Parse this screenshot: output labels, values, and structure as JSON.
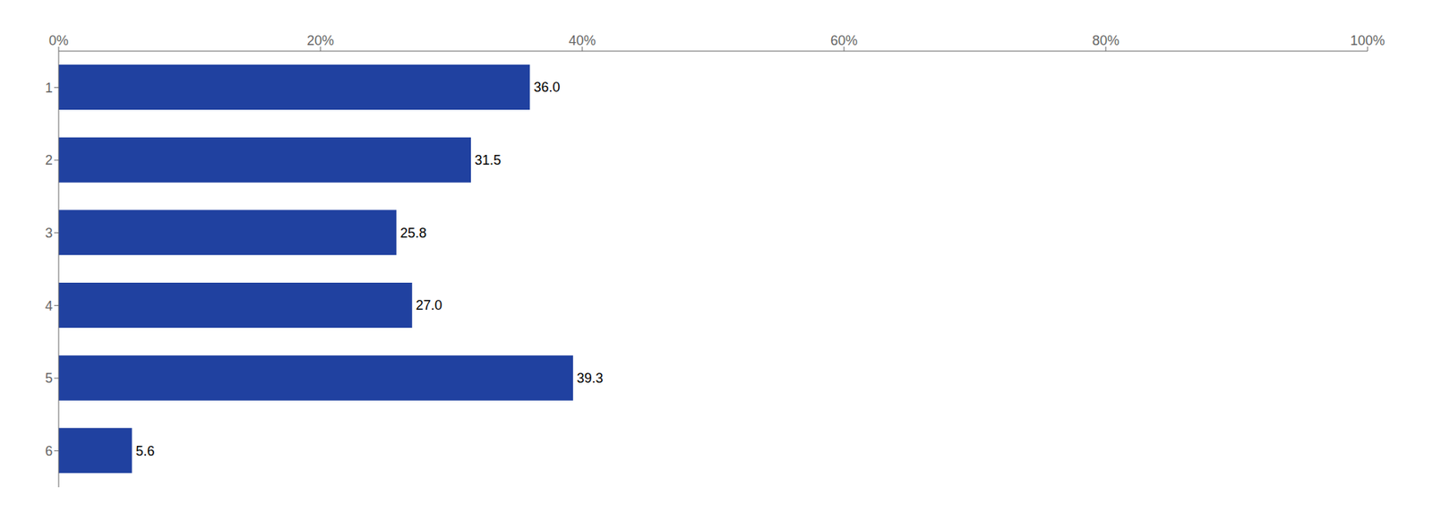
{
  "chart_data": {
    "type": "bar",
    "orientation": "horizontal",
    "categories": [
      "1",
      "2",
      "3",
      "4",
      "5",
      "6"
    ],
    "values": [
      36.0,
      31.5,
      25.8,
      27.0,
      39.3,
      5.6
    ],
    "value_labels": [
      "36.0",
      "31.5",
      "25.8",
      "27.0",
      "39.3",
      "5.6"
    ],
    "color": "#2041A0",
    "xlim": [
      0,
      100
    ],
    "xticks": [
      {
        "value": 0,
        "label": "0%"
      },
      {
        "value": 20,
        "label": "20%"
      },
      {
        "value": 40,
        "label": "40%"
      },
      {
        "value": 60,
        "label": "60%"
      },
      {
        "value": 80,
        "label": "80%"
      },
      {
        "value": 100,
        "label": "100%"
      }
    ],
    "grid": false,
    "data_labels": true
  }
}
